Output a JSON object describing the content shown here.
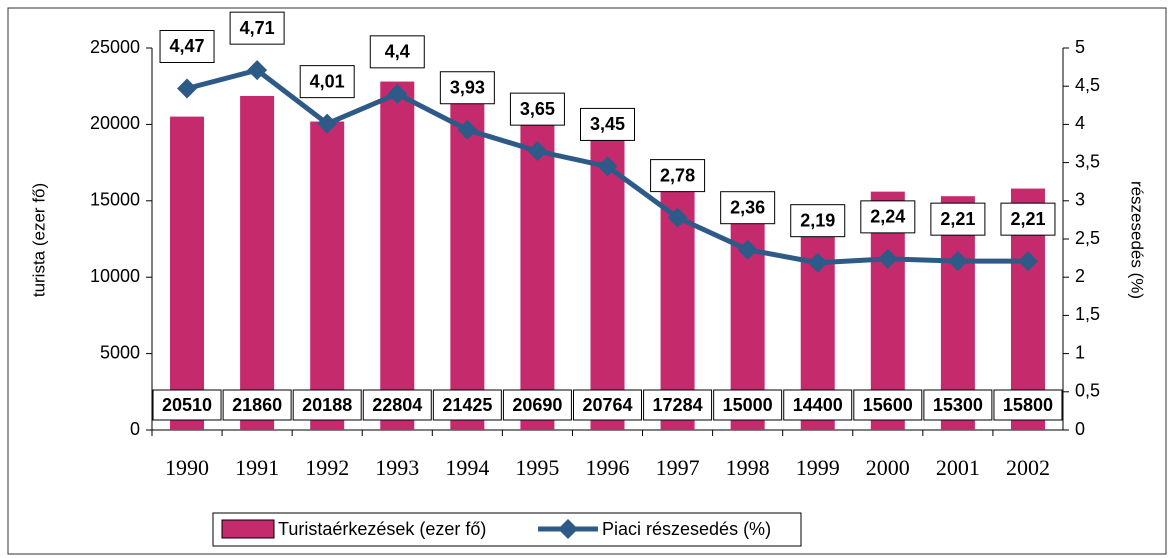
{
  "chart_data": {
    "type": "bar",
    "categories": [
      "1990",
      "1991",
      "1992",
      "1993",
      "1994",
      "1995",
      "1996",
      "1997",
      "1998",
      "1999",
      "2000",
      "2001",
      "2002"
    ],
    "series": [
      {
        "name": "Turistaérkezések (ezer fő)",
        "color": "#c42a6c",
        "values": [
          20510,
          21860,
          20188,
          22804,
          21425,
          20690,
          20764,
          17284,
          15000,
          14400,
          15600,
          15300,
          15800
        ]
      },
      {
        "name": "Piaci részesedés (%)",
        "color": "#2e5a88",
        "type": "line",
        "axis": "y2",
        "values": [
          4.47,
          4.71,
          4.01,
          4.4,
          3.93,
          3.65,
          3.45,
          2.78,
          2.36,
          2.19,
          2.24,
          2.21,
          2.21
        ],
        "value_labels": [
          "4,47",
          "4,71",
          "4,01",
          "4,4",
          "3,93",
          "3,65",
          "3,45",
          "2,78",
          "2,36",
          "2,19",
          "2,24",
          "2,21",
          "2,21"
        ]
      }
    ],
    "ylabel": "turista (ezer fő)",
    "y2label": "részesedés (%)",
    "ylim": [
      0,
      25000
    ],
    "yticks": [
      0,
      5000,
      10000,
      15000,
      20000,
      25000
    ],
    "y2lim": [
      0,
      5
    ],
    "y2ticks": [
      0,
      {
        "value": 0.5,
        "label": "0,5"
      },
      1,
      {
        "value": 1.5,
        "label": "1,5"
      },
      2,
      {
        "value": 2.5,
        "label": "2,5"
      },
      3,
      {
        "value": 3.5,
        "label": "3,5"
      },
      4,
      {
        "value": 4.5,
        "label": "4,5"
      },
      5
    ]
  }
}
